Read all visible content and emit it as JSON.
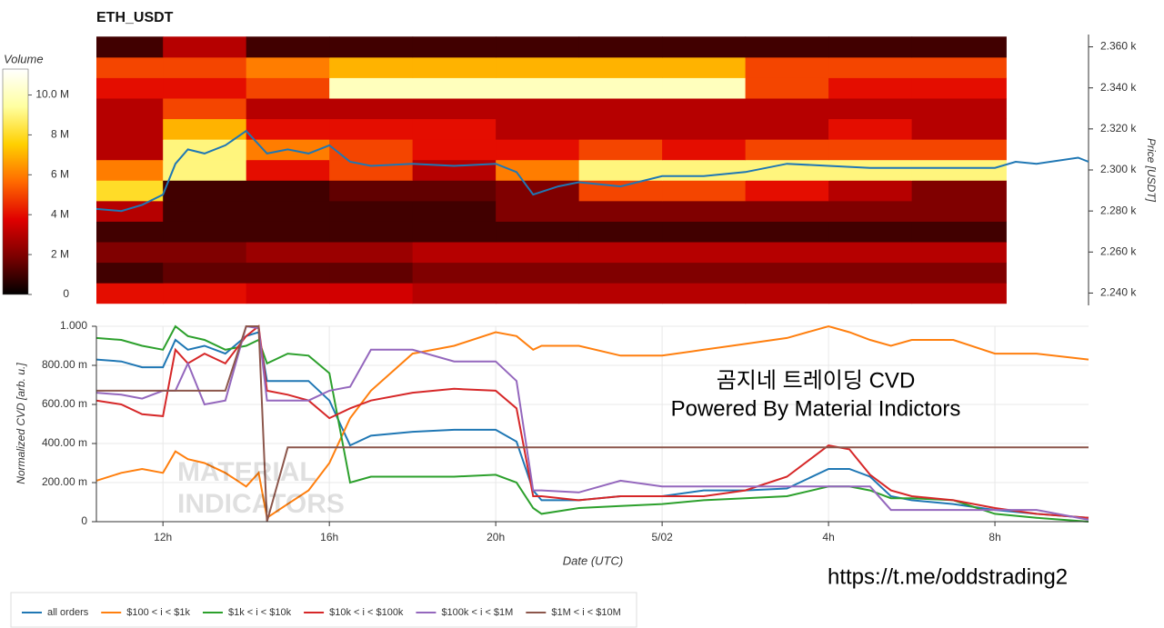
{
  "chart_data": [
    {
      "type": "heatmap",
      "title": "ETH_USDT",
      "ylabel": "Price [USDT]",
      "xlim": [
        10.4,
        34.25
      ],
      "ylim": [
        2234,
        2366
      ],
      "yticks": [
        {
          "value": 2240,
          "label": "2.240 k"
        },
        {
          "value": 2260,
          "label": "2.260 k"
        },
        {
          "value": 2280,
          "label": "2.280 k"
        },
        {
          "value": 2300,
          "label": "2.300 k"
        },
        {
          "value": 2320,
          "label": "2.320 k"
        },
        {
          "value": 2340,
          "label": "2.340 k"
        },
        {
          "value": 2360,
          "label": "2.360 k"
        }
      ],
      "x_edges": [
        10.4,
        12,
        14,
        16,
        18,
        20,
        22,
        24,
        26,
        28,
        30,
        32.27
      ],
      "y_edges": [
        2235,
        2245,
        2255,
        2265,
        2275,
        2285,
        2295,
        2305,
        2315,
        2325,
        2335,
        2345,
        2355,
        2365
      ],
      "z": [
        [
          4,
          4,
          3.5,
          3.5,
          3,
          3,
          3,
          3,
          3,
          3,
          3
        ],
        [
          1,
          1.5,
          1.5,
          1.5,
          2,
          2,
          2,
          2,
          2,
          2,
          2
        ],
        [
          2,
          2,
          2.5,
          2.5,
          3,
          3,
          3,
          3,
          3,
          3,
          3
        ],
        [
          1,
          1,
          1,
          1,
          1,
          1,
          1,
          1,
          1,
          1,
          1
        ],
        [
          3,
          1,
          1,
          1,
          1,
          2,
          2,
          2,
          2,
          2,
          2
        ],
        [
          8,
          1,
          1,
          1.5,
          1.5,
          2,
          5,
          5,
          4,
          3,
          2
        ],
        [
          6,
          9,
          4,
          5,
          3,
          6,
          9,
          9,
          9,
          9,
          9
        ],
        [
          3,
          9,
          6,
          5,
          4,
          4,
          5,
          4,
          5,
          5,
          5
        ],
        [
          3,
          7,
          4,
          4,
          4,
          3,
          3,
          3,
          3,
          4,
          3
        ],
        [
          3,
          5,
          3,
          3,
          3,
          3,
          3,
          3,
          3,
          3,
          3
        ],
        [
          4,
          4,
          5,
          10,
          10,
          10,
          10,
          10,
          5,
          4,
          4
        ],
        [
          5,
          5,
          6,
          7,
          7,
          7,
          7,
          7,
          5,
          5,
          5
        ],
        [
          1,
          3,
          1,
          1,
          1,
          1,
          1,
          1,
          1,
          1,
          1
        ]
      ],
      "colorbar": {
        "label": "Volume",
        "lim": [
          0,
          11.3
        ],
        "ticks": [
          0,
          {
            "value": 2,
            "label": "2 M"
          },
          {
            "value": 4,
            "label": "4 M"
          },
          {
            "value": 6,
            "label": "6 M"
          },
          {
            "value": 8,
            "label": "8 M"
          },
          {
            "value": 10,
            "label": "10.0 M"
          }
        ],
        "colors": [
          "#000000",
          "#7a0000",
          "#e00000",
          "#ff6a00",
          "#ffd000",
          "#ffffa0",
          "#ffffff"
        ]
      },
      "line": {
        "color": "#1f77b4",
        "x": [
          10.4,
          11,
          11.5,
          12,
          12.3,
          12.6,
          13,
          13.5,
          14,
          14.5,
          15,
          15.5,
          16,
          16.5,
          17,
          18,
          19,
          20,
          20.5,
          20.9,
          21.5,
          22,
          23,
          24,
          25,
          26,
          27,
          28,
          29,
          30,
          31,
          32,
          32.5,
          33,
          34,
          34.25
        ],
        "y": [
          2281,
          2280,
          2283,
          2288,
          2303,
          2310,
          2308,
          2312,
          2319,
          2308,
          2310,
          2308,
          2312,
          2304,
          2302,
          2303,
          2302,
          2303,
          2299,
          2288,
          2292,
          2294,
          2292,
          2297,
          2297,
          2299,
          2303,
          2302,
          2301,
          2301,
          2301,
          2301,
          2304,
          2303,
          2306,
          2304
        ]
      }
    },
    {
      "type": "line",
      "xlabel": "Date (UTC)",
      "ylabel": "Normalized CVD [arb. u.]",
      "grid": true,
      "legend": "bottom-left",
      "xlim": [
        10.4,
        34.25
      ],
      "ylim": [
        0,
        1
      ],
      "xticks": [
        {
          "value": 12,
          "label": "12h"
        },
        {
          "value": 16,
          "label": "16h"
        },
        {
          "value": 20,
          "label": "20h"
        },
        {
          "value": 24,
          "label": "5/02"
        },
        {
          "value": 28,
          "label": "4h"
        },
        {
          "value": 32,
          "label": "8h"
        }
      ],
      "yticks": [
        0,
        {
          "value": 0.2,
          "label": "200.00 m"
        },
        {
          "value": 0.4,
          "label": "400.00 m"
        },
        {
          "value": 0.6,
          "label": "600.00 m"
        },
        {
          "value": 0.8,
          "label": "800.00 m"
        },
        {
          "value": 1,
          "label": "1.000"
        }
      ],
      "x": [
        10.4,
        11,
        11.5,
        12,
        12.3,
        12.6,
        13,
        13.5,
        14,
        14.3,
        14.5,
        15,
        15.5,
        16,
        16.5,
        17,
        18,
        19,
        20,
        20.5,
        20.9,
        21.1,
        22,
        23,
        24,
        25,
        26,
        27,
        28,
        28.5,
        29,
        29.5,
        30,
        31,
        32,
        33,
        34.25
      ],
      "series": [
        {
          "name": "all orders",
          "color": "#1f77b4",
          "values": [
            0.83,
            0.82,
            0.79,
            0.79,
            0.93,
            0.88,
            0.9,
            0.86,
            0.95,
            0.97,
            0.72,
            0.72,
            0.72,
            0.62,
            0.39,
            0.44,
            0.46,
            0.47,
            0.47,
            0.41,
            0.16,
            0.11,
            0.11,
            0.13,
            0.13,
            0.16,
            0.16,
            0.17,
            0.27,
            0.27,
            0.23,
            0.13,
            0.11,
            0.09,
            0.06,
            0.04,
            0.02
          ]
        },
        {
          "name": "$100 < i < $1k",
          "color": "#ff7f0e",
          "values": [
            0.21,
            0.25,
            0.27,
            0.25,
            0.36,
            0.32,
            0.3,
            0.25,
            0.18,
            0.25,
            0.02,
            0.09,
            0.16,
            0.3,
            0.53,
            0.67,
            0.86,
            0.9,
            0.97,
            0.95,
            0.88,
            0.9,
            0.9,
            0.85,
            0.85,
            0.88,
            0.91,
            0.94,
            1,
            0.97,
            0.93,
            0.9,
            0.93,
            0.93,
            0.86,
            0.86,
            0.83
          ]
        },
        {
          "name": "$1k < i < $10k",
          "color": "#2ca02c",
          "values": [
            0.94,
            0.93,
            0.9,
            0.88,
            1,
            0.95,
            0.93,
            0.88,
            0.9,
            0.93,
            0.81,
            0.86,
            0.85,
            0.76,
            0.2,
            0.23,
            0.23,
            0.23,
            0.24,
            0.2,
            0.07,
            0.04,
            0.07,
            0.08,
            0.09,
            0.11,
            0.12,
            0.13,
            0.18,
            0.18,
            0.16,
            0.12,
            0.12,
            0.11,
            0.04,
            0.02,
            0
          ]
        },
        {
          "name": "$10k < i < $100k",
          "color": "#d62728",
          "values": [
            0.62,
            0.6,
            0.55,
            0.54,
            0.88,
            0.81,
            0.86,
            0.81,
            0.95,
            1,
            0.67,
            0.65,
            0.62,
            0.53,
            0.58,
            0.62,
            0.66,
            0.68,
            0.67,
            0.58,
            0.13,
            0.13,
            0.11,
            0.13,
            0.13,
            0.13,
            0.16,
            0.23,
            0.39,
            0.37,
            0.24,
            0.16,
            0.13,
            0.11,
            0.07,
            0.04,
            0.02
          ]
        },
        {
          "name": "$100k < i < $1M",
          "color": "#9467bd",
          "values": [
            0.66,
            0.65,
            0.63,
            0.67,
            0.67,
            0.81,
            0.6,
            0.62,
            1,
            0.99,
            0.62,
            0.62,
            0.62,
            0.67,
            0.69,
            0.88,
            0.88,
            0.82,
            0.82,
            0.72,
            0.16,
            0.16,
            0.15,
            0.21,
            0.18,
            0.18,
            0.18,
            0.18,
            0.18,
            0.18,
            0.18,
            0.06,
            0.06,
            0.06,
            0.06,
            0.06,
            0.01
          ]
        },
        {
          "name": "$1M < i < $10M",
          "color": "#8c564b",
          "values": [
            0.67,
            0.67,
            0.67,
            0.67,
            0.67,
            0.67,
            0.67,
            0.67,
            1,
            1,
            0,
            0.38,
            0.38,
            0.38,
            0.38,
            0.38,
            0.38,
            0.38,
            0.38,
            0.38,
            0.38,
            0.38,
            0.38,
            0.38,
            0.38,
            0.38,
            0.38,
            0.38,
            0.38,
            0.38,
            0.38,
            0.38,
            0.38,
            0.38,
            0.38,
            0.38,
            0.38
          ]
        }
      ],
      "annotations": [
        "곰지네 트레이딩 CVD",
        "Powered By Material Indictors",
        "https://t.me/oddstrading2"
      ],
      "watermark": [
        "MATERIAL",
        "INDICATORS"
      ]
    }
  ]
}
